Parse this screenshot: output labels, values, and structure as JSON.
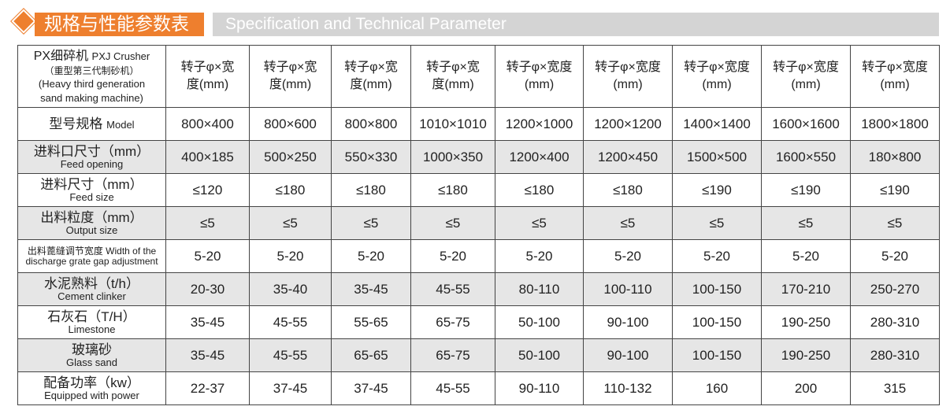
{
  "header": {
    "title_cn": "规格与性能参数表",
    "title_en": "Specification and Technical Parameter",
    "accent": "#ee7f2e"
  },
  "table": {
    "corner": {
      "line1": "PX细碎机",
      "line1_en": "PXJ Crusher",
      "line2": "（重型第三代制砂机）",
      "line3": "(Heavy third generation",
      "line4": "sand making machine)"
    },
    "column_header": "转子φ×宽度(mm)",
    "columns": 9,
    "rows": [
      {
        "cn": "型号规格",
        "en": "Model",
        "inline": true,
        "values": [
          "800×400",
          "800×600",
          "800×800",
          "1010×1010",
          "1200×1000",
          "1200×1200",
          "1400×1400",
          "1600×1600",
          "1800×1800"
        ]
      },
      {
        "cn": "进料口尺寸（mm）",
        "en": "Feed opening",
        "values": [
          "400×185",
          "500×250",
          "550×330",
          "1000×350",
          "1200×400",
          "1200×450",
          "1500×500",
          "1600×550",
          "180×800"
        ]
      },
      {
        "cn": "进料尺寸（mm）",
        "en": "Feed size",
        "values": [
          "≤120",
          "≤180",
          "≤180",
          "≤180",
          "≤180",
          "≤180",
          "≤190",
          "≤190",
          "≤190"
        ]
      },
      {
        "cn": "出料粒度（mm）",
        "en": "Output size",
        "values": [
          "≤5",
          "≤5",
          "≤5",
          "≤5",
          "≤5",
          "≤5",
          "≤5",
          "≤5",
          "≤5"
        ]
      },
      {
        "cn": "出料蓖缝调节宽度 Width of the",
        "en": "discharge grate gap adjustment",
        "values": [
          "5-20",
          "5-20",
          "5-20",
          "5-20",
          "5-20",
          "5-20",
          "5-20",
          "5-20",
          "5-20"
        ]
      },
      {
        "cn": "水泥熟料（t/h）",
        "en": "Cement clinker",
        "values": [
          "20-30",
          "35-40",
          "35-45",
          "45-55",
          "80-110",
          "100-110",
          "100-150",
          "170-210",
          "250-270"
        ]
      },
      {
        "cn": "石灰石（T/H）",
        "en": "Limestone",
        "values": [
          "35-45",
          "45-55",
          "55-65",
          "65-75",
          "50-100",
          "90-100",
          "100-150",
          "190-250",
          "280-310"
        ]
      },
      {
        "cn": "玻璃砂",
        "en": "Glass sand",
        "values": [
          "35-45",
          "45-55",
          "65-65",
          "65-75",
          "50-100",
          "90-100",
          "100-150",
          "190-250",
          "280-310"
        ]
      },
      {
        "cn": "配备功率（kw）",
        "en": "Equipped with power",
        "values": [
          "22-37",
          "37-45",
          "37-45",
          "45-55",
          "90-110",
          "110-132",
          "160",
          "200",
          "315"
        ]
      }
    ]
  }
}
